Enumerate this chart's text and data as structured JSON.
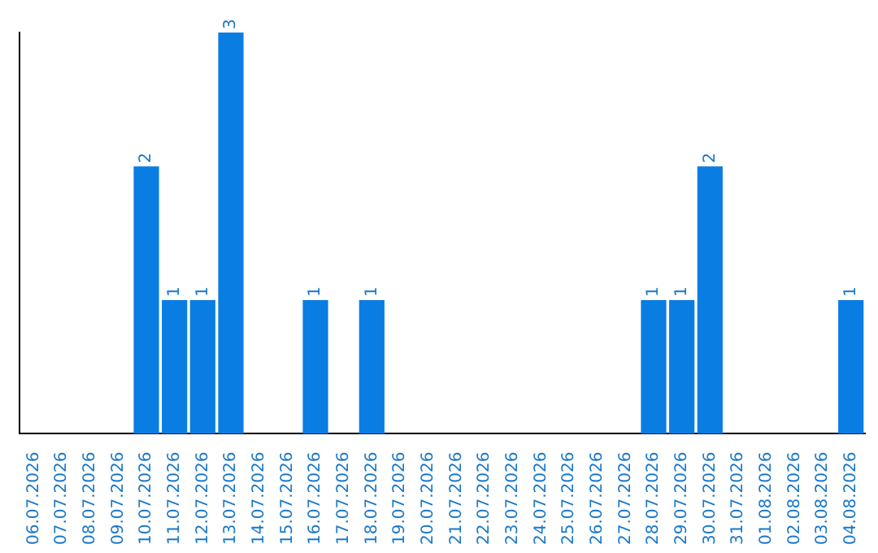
{
  "chart_data": {
    "type": "bar",
    "categories": [
      "06.07.2026",
      "07.07.2026",
      "08.07.2026",
      "09.07.2026",
      "10.07.2026",
      "11.07.2026",
      "12.07.2026",
      "13.07.2026",
      "14.07.2026",
      "15.07.2026",
      "16.07.2026",
      "17.07.2026",
      "18.07.2026",
      "19.07.2026",
      "20.07.2026",
      "21.07.2026",
      "22.07.2026",
      "23.07.2026",
      "24.07.2026",
      "25.07.2026",
      "26.07.2026",
      "27.07.2026",
      "28.07.2026",
      "29.07.2026",
      "30.07.2026",
      "31.07.2026",
      "01.08.2026",
      "02.08.2026",
      "03.08.2026",
      "04.08.2026"
    ],
    "values": [
      0,
      0,
      0,
      0,
      2,
      1,
      1,
      3,
      0,
      0,
      1,
      0,
      1,
      0,
      0,
      0,
      0,
      0,
      0,
      0,
      0,
      0,
      1,
      1,
      2,
      0,
      0,
      0,
      0,
      1
    ],
    "value_labels": [
      null,
      null,
      null,
      null,
      "2",
      "1",
      "1",
      "3",
      null,
      null,
      "1",
      null,
      "1",
      null,
      null,
      null,
      null,
      null,
      null,
      null,
      null,
      null,
      "1",
      "1",
      "2",
      null,
      null,
      null,
      null,
      "1"
    ],
    "color": "#0a7de3",
    "grid": false,
    "legend": false
  }
}
